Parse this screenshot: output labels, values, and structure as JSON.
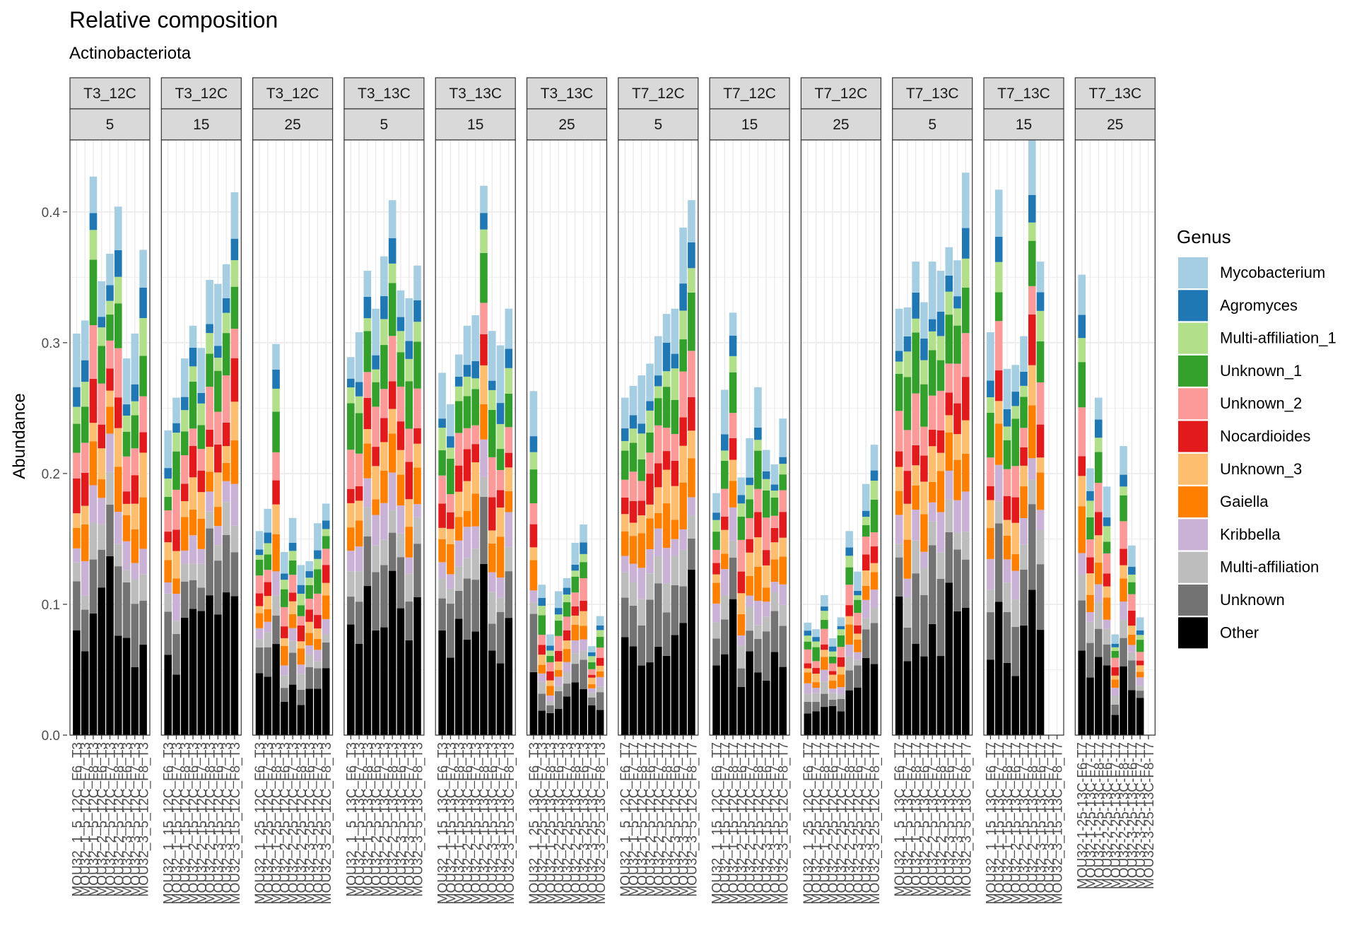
{
  "chart_data": {
    "type": "bar",
    "stacked": true,
    "title": "Relative composition",
    "subtitle": "Actinobacteriota",
    "ylabel": "Abundance",
    "xlabel": "",
    "ylim": [
      0,
      0.455
    ],
    "yticks": [
      0.0,
      0.1,
      0.2,
      0.3,
      0.4
    ],
    "ytick_labels": [
      "0.0",
      "0.1",
      "0.2",
      "0.3",
      "0.4"
    ],
    "grid": true,
    "legend": {
      "title": "Genus",
      "position": "right"
    },
    "genera": [
      "Other",
      "Unknown",
      "Multi-affiliation",
      "Kribbella",
      "Gaiella",
      "Unknown_3",
      "Nocardioides",
      "Unknown_2",
      "Unknown_1",
      "Multi-affiliation_1",
      "Agromyces",
      "Mycobacterium"
    ],
    "legend_order": [
      "Mycobacterium",
      "Agromyces",
      "Multi-affiliation_1",
      "Unknown_1",
      "Unknown_2",
      "Nocardioides",
      "Unknown_3",
      "Gaiella",
      "Kribbella",
      "Multi-affiliation",
      "Unknown",
      "Other"
    ],
    "colors": {
      "Mycobacterium": "#a6cee3",
      "Agromyces": "#1f78b4",
      "Multi-affiliation_1": "#b2df8a",
      "Unknown_1": "#33a02c",
      "Unknown_2": "#fb9a99",
      "Nocardioides": "#e31a1c",
      "Unknown_3": "#fdbf6f",
      "Gaiella": "#ff7f00",
      "Kribbella": "#cab2d6",
      "Multi-affiliation": "#bdbdbd",
      "Unknown": "#737373",
      "Other": "#000000"
    },
    "panels": [
      {
        "strip1": "T3_12C",
        "strip2": "5",
        "samples": [
          "MOU32_1_5_12C_F6_T3",
          "MOU32_1_5_12C_F7_T3",
          "MOU32_1_5_12C_F8_T3",
          "MOU32_2_5_12C_F6_T3",
          "MOU32_2_5_12C_F7_T3",
          "MOU32_2_5_12C_F8_T3",
          "MOU32_3_5_12C_F6_T3",
          "MOU32_3_5_12C_F7_T3",
          "MOU32_3_5_12C_F8_T3"
        ],
        "totals": [
          0.307,
          0.317,
          0.427,
          0.347,
          0.368,
          0.404,
          0.288,
          0.307,
          0.371
        ]
      },
      {
        "strip1": "T3_12C",
        "strip2": "15",
        "samples": [
          "MOU32_1_15_12C_F6_T3",
          "MOU32_1_15_12C_F7_T3",
          "MOU32_1_15_12C_F8_T3",
          "MOU32_2_15_12C_F6_T3",
          "MOU32_2_15_12C_F7_T3",
          "MOU32_2_15_12C_F8_T3",
          "MOU32_3_15_12C_F6_T3",
          "MOU32_3_15_12C_F7_T3",
          "MOU32_3_15_12C_F8_T3"
        ],
        "totals": [
          0.233,
          0.258,
          0.288,
          0.313,
          0.296,
          0.348,
          0.345,
          0.36,
          0.415
        ]
      },
      {
        "strip1": "T3_12C",
        "strip2": "25",
        "samples": [
          "MOU32_1_25_12C_F6_T3",
          "MOU32_1_25_12C_F7_T3",
          "MOU32_1_25_12C_F8_T3",
          "MOU32_2_25_12C_F6_T3",
          "MOU32_2_25_12C_F7_T3",
          "MOU32_2_25_12C_F8_T3",
          "MOU32_3_25_12C_F6_T3",
          "MOU32_3_25_12C_F7_T3",
          "MOU32_3_25_12C_F8_T3"
        ],
        "totals": [
          0.156,
          0.173,
          0.299,
          0.14,
          0.166,
          0.13,
          0.133,
          0.162,
          0.177
        ]
      },
      {
        "strip1": "T3_13C",
        "strip2": "5",
        "samples": [
          "MOU32_1_5_13C_F6_T3",
          "MOU32_1_5_13C_F7_T3",
          "MOU32_1_5_13C_F8_T3",
          "MOU32_2_5_13C_F6_T3",
          "MOU32_2_5_13C_F7_T3",
          "MOU32_2_5_13C_F8_T3",
          "MOU32_3_5_13C_F6_T3",
          "MOU32_3_5_13C_F7_T3",
          "MOU32_3_5_13C_F8_T3"
        ],
        "totals": [
          0.289,
          0.308,
          0.355,
          0.326,
          0.366,
          0.409,
          0.34,
          0.334,
          0.359
        ]
      },
      {
        "strip1": "T3_13C",
        "strip2": "15",
        "samples": [
          "MOU32_1_15_13C_F6_T3",
          "MOU32_1_15_13C_F7_T3",
          "MOU32_1_15_13C_F8_T3",
          "MOU32_2_15_13C_F6_T3",
          "MOU32_2_15_13C_F7_T3",
          "MOU32_2_15_13C_F8_T3",
          "MOU32_3_15_13C_F6_T3",
          "MOU32_3_15_13C_F7_T3",
          "MOU32_3_15_13C_F8_T3"
        ],
        "totals": [
          0.277,
          0.253,
          0.291,
          0.313,
          0.321,
          0.42,
          0.309,
          0.298,
          0.326
        ]
      },
      {
        "strip1": "T3_13C",
        "strip2": "25",
        "samples": [
          "MOU32_1_25_13C_F6_T3",
          "MOU32_1_25_13C_F7_T3",
          "MOU32_1_25_13C_F8_T3",
          "MOU32_2_25_13C_F6_T3",
          "MOU32_2_25_13C_F7_T3",
          "MOU32_2_25_13C_F8_T3",
          "MOU32_3_25_13C_F6_T3",
          "MOU32_3_25_13C_F7_T3",
          "MOU32_3_25_13C_F8_T3"
        ],
        "totals": [
          0.263,
          0.115,
          0.077,
          0.11,
          0.12,
          0.147,
          0.161,
          0.068,
          0.091
        ]
      },
      {
        "strip1": "T7_12C",
        "strip2": "5",
        "samples": [
          "MOU32_1_5_12C_F6_T7",
          "MOU32_1_5_12C_F7_T7",
          "MOU32_1_5_12C_F8_T7",
          "MOU32_2_5_12C_F6_T7",
          "MOU32_2_5_12C_F7_T7",
          "MOU32_2_5_12C_F8_T7",
          "MOU32_3_5_12C_F6_T7",
          "MOU32_3_5_12C_F7_T7",
          "MOU32_3_5_12C_F8_T7"
        ],
        "totals": [
          0.258,
          0.267,
          0.275,
          0.284,
          0.305,
          0.322,
          0.326,
          0.388,
          0.409
        ]
      },
      {
        "strip1": "T7_12C",
        "strip2": "15",
        "samples": [
          "MOU32_1_15_12C_F6_T7",
          "MOU32_1_15_12C_F7_T7",
          "MOU32_1_15_12C_F8_T7",
          "MOU32_2_15_12C_F6_T7",
          "MOU32_2_15_12C_F7_T7",
          "MOU32_2_15_12C_F8_T7",
          "MOU32_3_15_12C_F6_T7",
          "MOU32_3_15_12C_F7_T7",
          "MOU32_3_15_12C_F8_T7"
        ],
        "totals": [
          0.185,
          0.264,
          0.323,
          0.197,
          0.227,
          0.266,
          0.218,
          0.207,
          0.242
        ]
      },
      {
        "strip1": "T7_12C",
        "strip2": "25",
        "samples": [
          "MOU32_1_25_12C_F6_T7",
          "MOU32_1_25_12C_F7_T7",
          "MOU32_1_25_12C_F8_T7",
          "MOU32_2_25_12C_F6_T7",
          "MOU32_2_25_12C_F7_T7",
          "MOU32_2_25_12C_F8_T7",
          "MOU32_3_25_12C_F6_T7",
          "MOU32_3_25_12C_F7_T7",
          "MOU32_3_25_12C_F8_T7"
        ],
        "totals": [
          0.086,
          0.081,
          0.107,
          0.074,
          0.09,
          0.156,
          0.125,
          0.192,
          0.222
        ]
      },
      {
        "strip1": "T7_13C",
        "strip2": "5",
        "samples": [
          "MOU32_1_5_13C_F6_T7",
          "MOU32_1_5_13C_F7_T7",
          "MOU32_1_5_13C_F8_T7",
          "MOU32_2_5_13C_F6_T7",
          "MOU32_2_5_13C_F7_T7",
          "MOU32_2_5_13C_F8_T7",
          "MOU32_3_5_13C_F6_T7",
          "MOU32_3_5_13C_F7_T7",
          "MOU32_3_5_13C_F8_T7"
        ],
        "totals": [
          0.326,
          0.327,
          0.362,
          0.331,
          0.362,
          0.355,
          0.373,
          0.363,
          0.43
        ]
      },
      {
        "strip1": "T7_13C",
        "strip2": "15",
        "samples": [
          "MOU32_1_15_13C_F6_T7",
          "MOU32_1_15_13C_F7_T7",
          "MOU32_1_15_13C_F8_T7",
          "MOU32_2_15_13C_F6_T7",
          "MOU32_2_15_13C_F7_T7",
          "MOU32_2_15_13C_F8_T7",
          "MOU32_3_15_13C_F6_T7",
          "MOU32_3_15_13C_F7_T7",
          "MOU32_3_15_13C_F8_T7"
        ],
        "totals": [
          0.308,
          0.417,
          0.28,
          0.283,
          0.305,
          0.455,
          0.362,
          0.0,
          0.0
        ]
      },
      {
        "strip1": "T7_13C",
        "strip2": "25",
        "samples": [
          "MOU32-1-25-13C-F6-T7",
          "MOU32-1-25-13C-F7-T7",
          "MOU32-1-25-13C-F8-T7",
          "MOU32-2-25-13C-F6-T7",
          "MOU32-2-25-13C-F7-T7",
          "MOU32-2-25-13C-F8-T7",
          "MOU32-3-25-13C-F6-T7",
          "MOU32-3-25-13C-F7-T7",
          "MOU32-3-25-13C-F8-T7"
        ],
        "totals": [
          0.352,
          0.204,
          0.258,
          0.19,
          0.077,
          0.221,
          0.145,
          0.09,
          0.0
        ]
      }
    ]
  }
}
